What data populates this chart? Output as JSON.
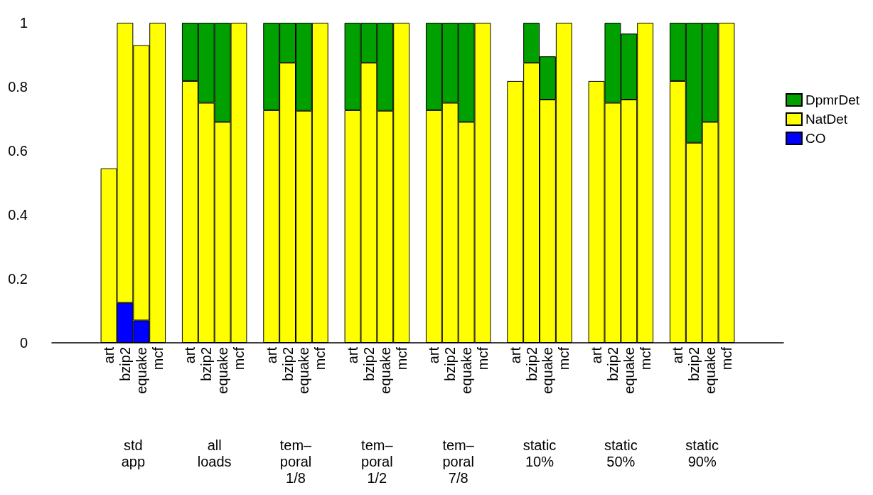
{
  "chart_data": {
    "type": "bar",
    "stacked": true,
    "categories": [
      null,
      null,
      null,
      "art",
      "bzip2",
      "equake",
      "mcf",
      null,
      "art",
      "bzip2",
      "equake",
      "mcf",
      null,
      "art",
      "bzip2",
      "equake",
      "mcf",
      null,
      "art",
      "bzip2",
      "equake",
      "mcf",
      null,
      "art",
      "bzip2",
      "equake",
      "mcf",
      null,
      "art",
      "bzip2",
      "equake",
      "mcf",
      null,
      "art",
      "bzip2",
      "equake",
      "mcf",
      null,
      "art",
      "bzip2",
      "equake",
      "mcf",
      null,
      null,
      null
    ],
    "series": [
      {
        "name": "CO",
        "color": "#0000ff",
        "values": [
          null,
          null,
          null,
          null,
          0.125,
          0.07,
          null,
          null,
          null,
          null,
          null,
          null,
          null,
          null,
          null,
          null,
          null,
          null,
          null,
          null,
          null,
          null,
          null,
          null,
          null,
          null,
          null,
          null,
          null,
          null,
          null,
          null,
          null,
          null,
          null,
          null,
          null,
          null,
          null,
          null,
          null,
          null,
          null,
          null,
          null
        ]
      },
      {
        "name": "NatDet",
        "color": "#ffff00",
        "values": [
          null,
          null,
          null,
          0.545,
          0.875,
          0.86,
          1,
          null,
          0.818,
          0.75,
          0.69,
          1,
          null,
          0.727,
          0.875,
          0.725,
          1,
          null,
          0.727,
          0.875,
          0.725,
          1,
          null,
          0.727,
          0.75,
          0.69,
          1,
          null,
          0.818,
          0.875,
          0.76,
          1,
          null,
          0.818,
          0.75,
          0.76,
          1,
          null,
          0.818,
          0.625,
          0.69,
          1,
          null,
          null,
          null
        ]
      },
      {
        "name": "DpmrDet",
        "color": "#00a000",
        "values": [
          null,
          null,
          null,
          null,
          null,
          null,
          null,
          null,
          0.182,
          0.25,
          0.31,
          null,
          null,
          0.273,
          0.125,
          0.275,
          null,
          null,
          0.273,
          0.125,
          0.275,
          null,
          null,
          0.273,
          0.25,
          0.31,
          null,
          null,
          null,
          0.125,
          0.135,
          null,
          null,
          null,
          0.25,
          0.206,
          null,
          null,
          0.182,
          0.375,
          0.31,
          null,
          null,
          null,
          null
        ]
      }
    ],
    "ylim": [
      0,
      1
    ],
    "yticks": [
      0,
      0.2,
      0.4,
      0.6,
      0.8,
      1
    ],
    "annotations": [
      "std\napp",
      "all\nloads",
      "tem–\nporal\n1/8",
      "tem–\nporal\n1/2",
      "tem–\nporal\n7/8",
      "static\n10%",
      "static\n50%",
      "static\n90%"
    ],
    "legend": "right",
    "grid": false
  }
}
